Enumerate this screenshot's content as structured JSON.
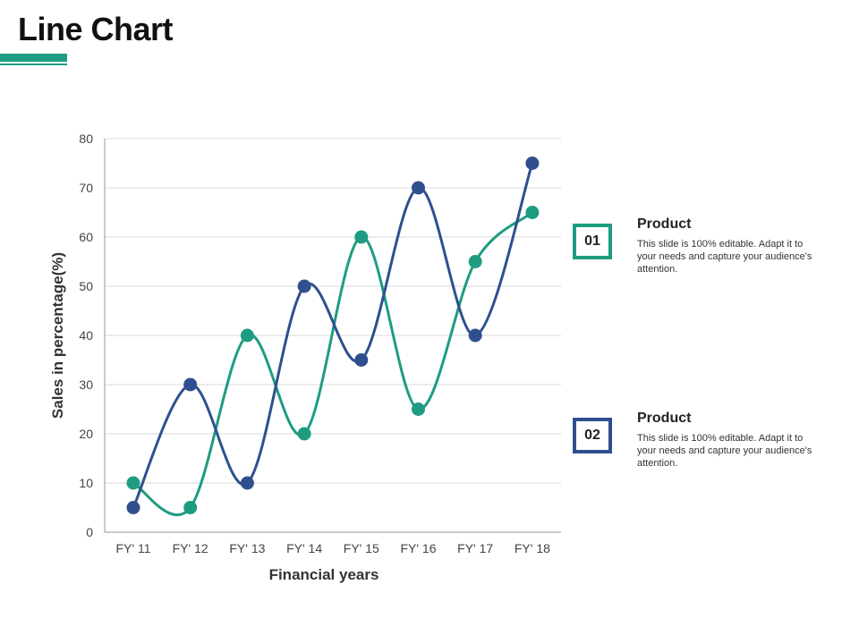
{
  "slide": {
    "title": "Line Chart"
  },
  "colors": {
    "accent_green": "#1e9c82",
    "accent_blue": "#2f4f8f"
  },
  "legend": [
    {
      "number": "01",
      "title": "Product",
      "description": "This slide is 100% editable. Adapt it to your needs and capture your audience's attention.",
      "color": "#1e9c82"
    },
    {
      "number": "02",
      "title": "Product",
      "description": "This slide is 100% editable. Adapt it to your needs and capture your audience's attention.",
      "color": "#2f4f8f"
    }
  ],
  "chart_data": {
    "type": "line",
    "title": "",
    "xlabel": "Financial years",
    "ylabel": "Sales in percentage(%)",
    "categories": [
      "FY' 11",
      "FY' 12",
      "FY' 13",
      "FY' 14",
      "FY' 15",
      "FY' 16",
      "FY' 17",
      "FY' 18"
    ],
    "ylim": [
      0,
      80
    ],
    "yticks": [
      0,
      10,
      20,
      30,
      40,
      50,
      60,
      70,
      80
    ],
    "grid": true,
    "smooth": true,
    "series": [
      {
        "values": [
          10,
          5,
          40,
          20,
          60,
          25,
          55,
          65
        ],
        "color": "#1e9c82"
      },
      {
        "values": [
          5,
          30,
          10,
          50,
          35,
          70,
          40,
          75
        ],
        "color": "#2f4f8f"
      }
    ]
  }
}
